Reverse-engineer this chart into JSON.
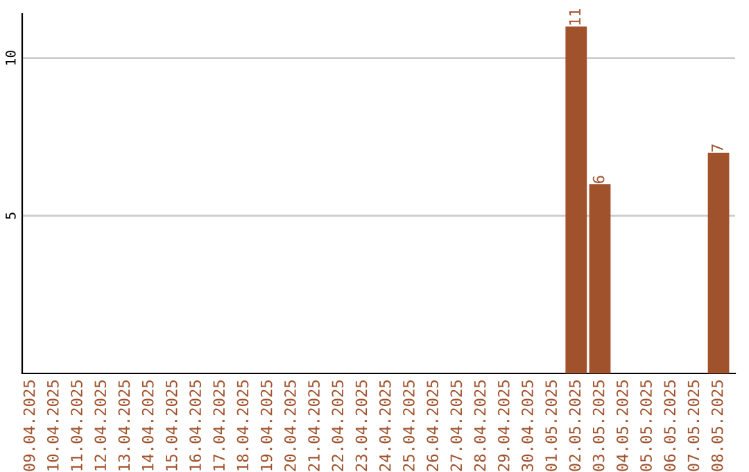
{
  "chart_data": {
    "type": "bar",
    "categories": [
      "09.04.2025",
      "10.04.2025",
      "11.04.2025",
      "12.04.2025",
      "13.04.2025",
      "14.04.2025",
      "15.04.2025",
      "16.04.2025",
      "17.04.2025",
      "18.04.2025",
      "19.04.2025",
      "20.04.2025",
      "21.04.2025",
      "22.04.2025",
      "23.04.2025",
      "24.04.2025",
      "25.04.2025",
      "26.04.2025",
      "27.04.2025",
      "28.04.2025",
      "29.04.2025",
      "30.04.2025",
      "01.05.2025",
      "02.05.2025",
      "03.05.2025",
      "04.05.2025",
      "05.05.2025",
      "06.05.2025",
      "07.05.2025",
      "08.05.2025"
    ],
    "values": [
      0,
      0,
      0,
      0,
      0,
      0,
      0,
      0,
      0,
      0,
      0,
      0,
      0,
      0,
      0,
      0,
      0,
      0,
      0,
      0,
      0,
      0,
      0,
      11,
      6,
      0,
      0,
      0,
      0,
      7
    ],
    "value_labels": [
      null,
      null,
      null,
      null,
      null,
      null,
      null,
      null,
      null,
      null,
      null,
      null,
      null,
      null,
      null,
      null,
      null,
      null,
      null,
      null,
      null,
      null,
      null,
      "11",
      "6",
      null,
      null,
      null,
      null,
      "7"
    ],
    "color": "#a0522d",
    "ylim": [
      0,
      11.4
    ],
    "yticks": [
      5,
      10
    ],
    "grid": "y"
  }
}
